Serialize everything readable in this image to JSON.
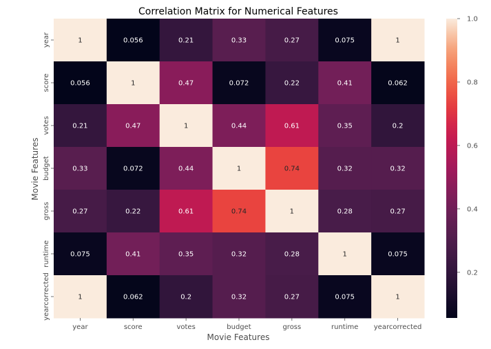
{
  "chart_data": {
    "type": "heatmap",
    "title": "Correlation Matrix for Numerical Features",
    "xlabel": "Movie Features",
    "ylabel": "Movie Features",
    "x_categories": [
      "year",
      "score",
      "votes",
      "budget",
      "gross",
      "runtime",
      "yearcorrected"
    ],
    "y_categories": [
      "year",
      "score",
      "votes",
      "budget",
      "gross",
      "runtime",
      "yearcorrected"
    ],
    "values": [
      [
        1,
        0.056,
        0.21,
        0.33,
        0.27,
        0.075,
        1
      ],
      [
        0.056,
        1,
        0.47,
        0.072,
        0.22,
        0.41,
        0.062
      ],
      [
        0.21,
        0.47,
        1,
        0.44,
        0.61,
        0.35,
        0.2
      ],
      [
        0.33,
        0.072,
        0.44,
        1,
        0.74,
        0.32,
        0.32
      ],
      [
        0.27,
        0.22,
        0.61,
        0.74,
        1,
        0.28,
        0.27
      ],
      [
        0.075,
        0.41,
        0.35,
        0.32,
        0.28,
        1,
        0.075
      ],
      [
        1,
        0.062,
        0.2,
        0.32,
        0.27,
        0.075,
        1
      ]
    ],
    "labels": [
      [
        "1",
        "0.056",
        "0.21",
        "0.33",
        "0.27",
        "0.075",
        "1"
      ],
      [
        "0.056",
        "1",
        "0.47",
        "0.072",
        "0.22",
        "0.41",
        "0.062"
      ],
      [
        "0.21",
        "0.47",
        "1",
        "0.44",
        "0.61",
        "0.35",
        "0.2"
      ],
      [
        "0.33",
        "0.072",
        "0.44",
        "1",
        "0.74",
        "0.32",
        "0.32"
      ],
      [
        "0.27",
        "0.22",
        "0.61",
        "0.74",
        "1",
        "0.28",
        "0.27"
      ],
      [
        "0.075",
        "0.41",
        "0.35",
        "0.32",
        "0.28",
        "1",
        "0.075"
      ],
      [
        "1",
        "0.062",
        "0.2",
        "0.32",
        "0.27",
        "0.075",
        "1"
      ]
    ],
    "colorbar": {
      "range": [
        0.056,
        1.0
      ],
      "ticks": [
        0.2,
        0.4,
        0.6,
        0.8,
        1.0
      ],
      "tick_labels": [
        "0.2",
        "0.4",
        "0.6",
        "0.8",
        "1.0"
      ],
      "colormap": "rocket"
    }
  }
}
